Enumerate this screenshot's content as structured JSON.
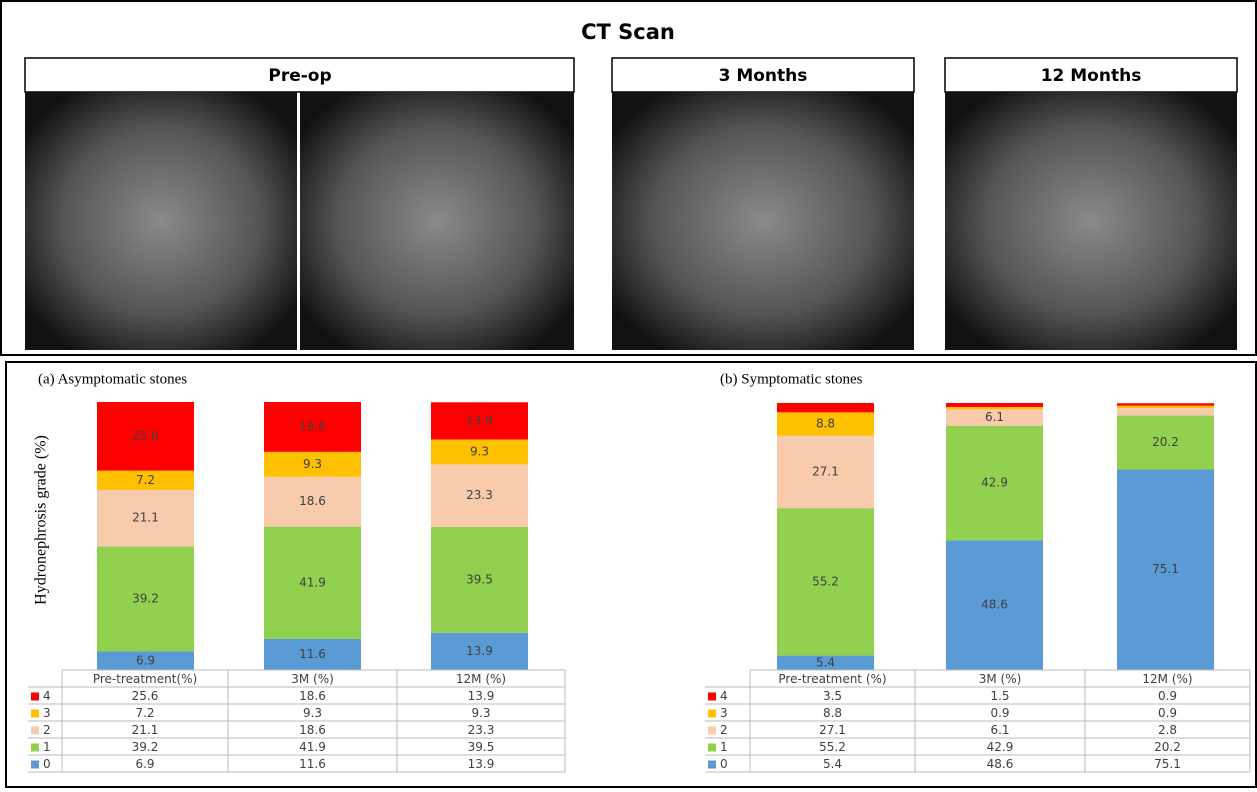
{
  "header": {
    "title": "CT Scan",
    "panels": [
      "Pre-op",
      "3 Months",
      "12 Months"
    ]
  },
  "chart_data": [
    {
      "type": "bar",
      "stacked": true,
      "title": "(a) Asymptomatic stones",
      "y_label": "Hydronephrosis grade (%)",
      "categories": [
        "Pre-treatment(%)",
        "3M (%)",
        "12M (%)"
      ],
      "ylim": [
        0,
        100
      ],
      "series": [
        {
          "name": "0",
          "color": "#5b9bd5",
          "values": [
            6.9,
            11.6,
            13.9
          ]
        },
        {
          "name": "1",
          "color": "#92d050",
          "values": [
            39.2,
            41.9,
            39.5
          ]
        },
        {
          "name": "2",
          "color": "#f8cbad",
          "values": [
            21.1,
            18.6,
            23.3
          ]
        },
        {
          "name": "3",
          "color": "#ffc000",
          "values": [
            7.2,
            9.3,
            9.3
          ]
        },
        {
          "name": "4",
          "color": "#ff0000",
          "values": [
            25.6,
            18.6,
            13.9
          ]
        }
      ]
    },
    {
      "type": "bar",
      "stacked": true,
      "title": "(b) Symptomatic  stones",
      "categories": [
        "Pre-treatment    (%)",
        "3M (%)",
        "12M (%)"
      ],
      "ylim": [
        0,
        100
      ],
      "series": [
        {
          "name": "0",
          "color": "#5b9bd5",
          "values": [
            5.4,
            48.6,
            75.1
          ]
        },
        {
          "name": "1",
          "color": "#92d050",
          "values": [
            55.2,
            42.9,
            20.2
          ]
        },
        {
          "name": "2",
          "color": "#f8cbad",
          "values": [
            27.1,
            6.1,
            2.8
          ]
        },
        {
          "name": "3",
          "color": "#ffc000",
          "values": [
            8.8,
            0.9,
            0.9
          ]
        },
        {
          "name": "4",
          "color": "#ff0000",
          "values": [
            3.5,
            1.5,
            0.9
          ]
        }
      ]
    }
  ]
}
